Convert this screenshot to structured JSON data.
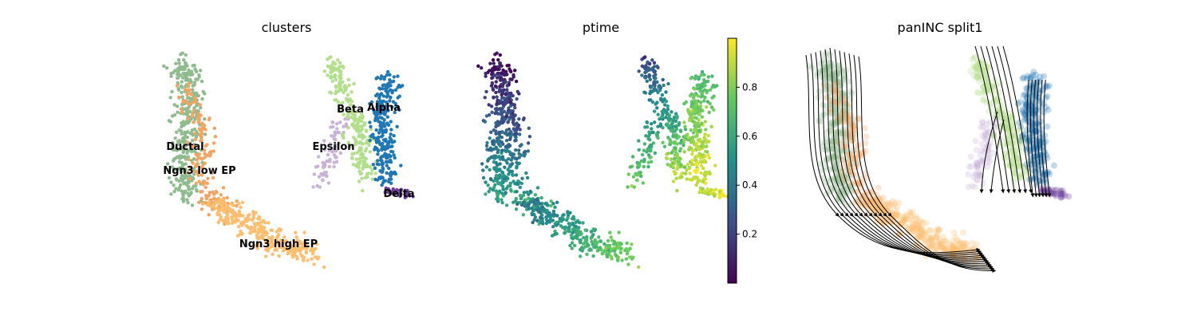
{
  "chart_data": [
    {
      "type": "scatter",
      "title": "clusters",
      "xlabel": "",
      "ylabel": "",
      "grid": false,
      "axes": false,
      "annotations": [
        "Ductal",
        "Ngn3 low EP",
        "Ngn3 high EP",
        "Epsilon",
        "Beta",
        "Alpha",
        "Delta"
      ],
      "series": [
        {
          "name": "Ductal",
          "color": "#8fbc8f"
        },
        {
          "name": "Ngn3 low EP",
          "color": "#f4a460"
        },
        {
          "name": "Ngn3 high EP",
          "color": "#fdbf6f"
        },
        {
          "name": "Epsilon",
          "color": "#cab2d6"
        },
        {
          "name": "Beta",
          "color": "#b2df8a"
        },
        {
          "name": "Alpha",
          "color": "#1f78b4"
        },
        {
          "name": "Delta",
          "color": "#6a3d9a"
        }
      ]
    },
    {
      "type": "scatter",
      "title": "ptime",
      "xlabel": "",
      "ylabel": "",
      "grid": false,
      "axes": false,
      "colormap": "viridis",
      "colorbar": {
        "range": [
          0.0,
          1.0
        ],
        "ticks": [
          "0.2",
          "0.4",
          "0.6",
          "0.8"
        ]
      }
    },
    {
      "type": "scatter",
      "title": "panINC split1",
      "xlabel": "",
      "ylabel": "",
      "grid": false,
      "axes": false,
      "overlay": "velocity streamlines with arrows"
    }
  ]
}
